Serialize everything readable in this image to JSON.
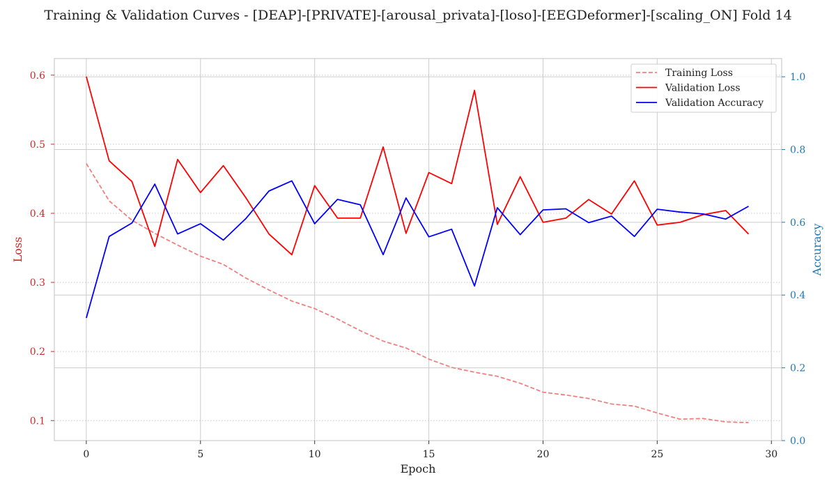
{
  "chart_data": {
    "type": "line",
    "title": "Training & Validation Curves - [DEAP]-[PRIVATE]-[arousal_privata]-[loso]-[EEGDeformer]-[scaling_ON] Fold 14",
    "xlabel": "Epoch",
    "ylabel_left": "Loss",
    "ylabel_right": "Accuracy",
    "xlim": [
      -1.4,
      30.45
    ],
    "ylim_left": [
      0.071,
      0.624
    ],
    "ylim_right": [
      0.0,
      1.05
    ],
    "x_ticks": [
      0,
      5,
      10,
      15,
      20,
      25,
      30
    ],
    "y_ticks_left": [
      0.1,
      0.2,
      0.3,
      0.4,
      0.5,
      0.6
    ],
    "y_ticks_right": [
      0.0,
      0.2,
      0.4,
      0.6,
      0.8,
      1.0
    ],
    "grid": true,
    "legend_position": "top-right",
    "colors": {
      "training_loss": "#f08080",
      "validation_loss": "#ff0000",
      "validation_accuracy": "#0000ff",
      "left_axis": "#d62728",
      "right_axis": "#1f77b4"
    },
    "x": [
      0,
      1,
      2,
      3,
      4,
      5,
      6,
      7,
      8,
      9,
      10,
      11,
      12,
      13,
      14,
      15,
      16,
      17,
      18,
      19,
      20,
      21,
      22,
      23,
      24,
      25,
      26,
      27,
      28,
      29
    ],
    "series": [
      {
        "name": "Training Loss",
        "axis": "left",
        "style": "dashed",
        "values": [
          0.472,
          0.418,
          0.39,
          0.371,
          0.354,
          0.338,
          0.326,
          0.306,
          0.289,
          0.273,
          0.262,
          0.247,
          0.23,
          0.215,
          0.205,
          0.189,
          0.177,
          0.17,
          0.164,
          0.154,
          0.141,
          0.137,
          0.132,
          0.124,
          0.121,
          0.111,
          0.102,
          0.103,
          0.098,
          0.097
        ]
      },
      {
        "name": "Validation Loss",
        "axis": "left",
        "style": "solid",
        "values": [
          0.598,
          0.476,
          0.446,
          0.352,
          0.478,
          0.43,
          0.469,
          0.422,
          0.37,
          0.34,
          0.44,
          0.393,
          0.393,
          0.496,
          0.371,
          0.459,
          0.443,
          0.578,
          0.384,
          0.453,
          0.387,
          0.393,
          0.42,
          0.399,
          0.447,
          0.383,
          0.387,
          0.398,
          0.404,
          0.37
        ]
      },
      {
        "name": "Validation Accuracy",
        "axis": "right",
        "style": "solid",
        "values": [
          0.337,
          0.561,
          0.598,
          0.705,
          0.568,
          0.596,
          0.551,
          0.611,
          0.686,
          0.714,
          0.596,
          0.663,
          0.648,
          0.511,
          0.667,
          0.56,
          0.581,
          0.425,
          0.64,
          0.566,
          0.634,
          0.637,
          0.599,
          0.617,
          0.561,
          0.636,
          0.628,
          0.623,
          0.609,
          0.644
        ]
      }
    ]
  }
}
